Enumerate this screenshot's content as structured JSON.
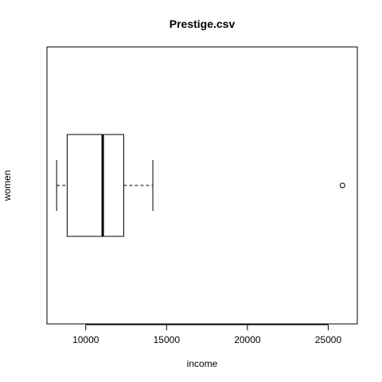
{
  "chart_data": {
    "type": "boxplot",
    "orientation": "horizontal",
    "title": "Prestige.csv",
    "xlabel": "income",
    "ylabel": "women",
    "xlim": [
      7600,
      26800
    ],
    "x_ticks": [
      10000,
      15000,
      20000,
      25000
    ],
    "x_tick_labels": [
      "10000",
      "15000",
      "20000",
      "25000"
    ],
    "grid": false,
    "boxes": [
      {
        "whisker_low": 8200,
        "q1": 8850,
        "median": 11050,
        "q3": 12350,
        "whisker_high": 14150,
        "outliers": [
          25880
        ]
      }
    ],
    "colors": {
      "box_stroke": "#000000",
      "median": "#000000",
      "background": "#ffffff"
    }
  }
}
